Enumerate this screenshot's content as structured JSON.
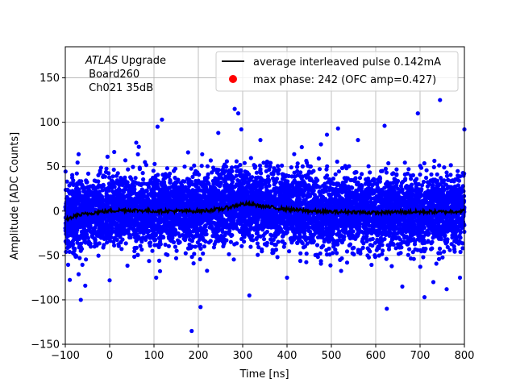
{
  "chart_data": {
    "type": "scatter",
    "title": "",
    "xlabel": "Time [ns]",
    "ylabel": "Amplitude [ADC Counts]",
    "xlim": [
      -100,
      800
    ],
    "ylim": [
      -150,
      185
    ],
    "xticks": [
      -100,
      0,
      100,
      200,
      300,
      400,
      500,
      600,
      700,
      800
    ],
    "yticks": [
      -150,
      -100,
      -50,
      0,
      50,
      100,
      150
    ],
    "xtick_labels": [
      "−100",
      "0",
      "100",
      "200",
      "300",
      "400",
      "500",
      "600",
      "700",
      "800"
    ],
    "ytick_labels": [
      "−150",
      "−100",
      "−50",
      "0",
      "50",
      "100",
      "150"
    ],
    "grid": true,
    "legend_placement": "upper-right",
    "annotation": {
      "line1_italic": "ATLAS",
      "line1_rest": " Upgrade",
      "line2": " Board260",
      "line3": " Ch021 35dB"
    },
    "series": [
      {
        "name": "average interleaved pulse 0.142mA",
        "kind": "line",
        "color": "#000000",
        "x": [
          -100,
          -75,
          -50,
          -25,
          0,
          25,
          50,
          100,
          150,
          200,
          250,
          275,
          300,
          325,
          350,
          400,
          450,
          500,
          550,
          600,
          650,
          700,
          750,
          800
        ],
        "y": [
          -10,
          -5,
          -3,
          -1,
          0,
          1,
          1,
          0,
          0,
          0,
          2,
          5,
          8,
          7,
          5,
          2,
          0,
          -1,
          -1,
          -2,
          -1,
          -1,
          -1,
          0
        ]
      },
      {
        "name": "max phase: 242 (OFC amp=0.427)",
        "kind": "marker",
        "color": "#ff0000"
      },
      {
        "name": "",
        "kind": "scatter",
        "color": "#0000ff",
        "note_noise_sigma": 20,
        "outliers": [
          {
            "x": 118,
            "y": 103
          },
          {
            "x": 108,
            "y": 95
          },
          {
            "x": 185,
            "y": -135
          },
          {
            "x": 205,
            "y": -108
          },
          {
            "x": 282,
            "y": 115
          },
          {
            "x": 290,
            "y": 110
          },
          {
            "x": 297,
            "y": 92
          },
          {
            "x": 315,
            "y": -95
          },
          {
            "x": 340,
            "y": 80
          },
          {
            "x": 515,
            "y": 93
          },
          {
            "x": 490,
            "y": 86
          },
          {
            "x": 620,
            "y": 96
          },
          {
            "x": 625,
            "y": -110
          },
          {
            "x": 695,
            "y": 110
          },
          {
            "x": 710,
            "y": -97
          },
          {
            "x": 745,
            "y": 125
          },
          {
            "x": 760,
            "y": -88
          },
          {
            "x": 800,
            "y": 92
          },
          {
            "x": -65,
            "y": -100
          },
          {
            "x": -70,
            "y": 64
          },
          {
            "x": -55,
            "y": -84
          },
          {
            "x": 0,
            "y": -78
          },
          {
            "x": 60,
            "y": 77
          },
          {
            "x": 105,
            "y": -75
          },
          {
            "x": 245,
            "y": 88
          },
          {
            "x": 400,
            "y": -75
          },
          {
            "x": 560,
            "y": 80
          },
          {
            "x": 660,
            "y": -85
          },
          {
            "x": 730,
            "y": -80
          },
          {
            "x": 790,
            "y": -75
          }
        ]
      }
    ]
  }
}
